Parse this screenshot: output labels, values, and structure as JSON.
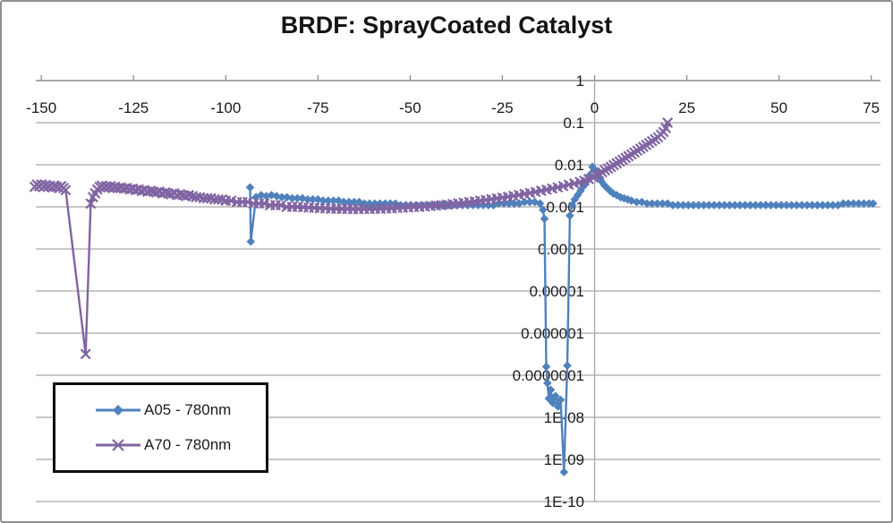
{
  "chart_data": {
    "type": "line",
    "title": "BRDF: SprayCoated Catalyst",
    "xlabel": "",
    "ylabel": "",
    "grid": "horizontal-log-decades-plus-zero-vertical",
    "legend_position": "inside-bottom-left",
    "x_axis": {
      "position": "top",
      "lim": [
        -151.5,
        77.5
      ],
      "ticks": [
        -150,
        -125,
        -100,
        -75,
        -50,
        -25,
        0,
        25,
        50,
        75
      ],
      "tick_labels": [
        "-150",
        "-125",
        "-100",
        "-75",
        "-50",
        "-25",
        "0",
        "25",
        "50",
        "75"
      ]
    },
    "y_axis": {
      "scale": "log",
      "lim": [
        1e-10,
        1
      ],
      "tick_labels": [
        "1",
        "0.1",
        "0.01",
        "0.001",
        "0.0001",
        "0.00001",
        "0.000001",
        "0.0000001",
        "1E-08",
        "1E-09",
        "1E-10"
      ]
    },
    "series": [
      {
        "name": "A05 - 780nm",
        "color": "#4f81bd",
        "marker": "diamond",
        "points": [
          [
            -93.4,
            0.0029
          ],
          [
            -93.2,
            0.00015
          ],
          [
            -91.8,
            0.0017
          ],
          [
            -90.4,
            0.0019
          ],
          [
            -89,
            0.0018
          ],
          [
            -87.6,
            0.0019
          ],
          [
            -86.2,
            0.0018
          ],
          [
            -84.8,
            0.0017
          ],
          [
            -83.4,
            0.0017
          ],
          [
            -82,
            0.0016
          ],
          [
            -80.6,
            0.0016
          ],
          [
            -79.2,
            0.0016
          ],
          [
            -77.8,
            0.0015
          ],
          [
            -76.4,
            0.0015
          ],
          [
            -75,
            0.0015
          ],
          [
            -73.6,
            0.0014
          ],
          [
            -72.2,
            0.0014
          ],
          [
            -70.8,
            0.0014
          ],
          [
            -69.4,
            0.0014
          ],
          [
            -68,
            0.0013
          ],
          [
            -66.6,
            0.0013
          ],
          [
            -65.2,
            0.0013
          ],
          [
            -63.8,
            0.0013
          ],
          [
            -62.4,
            0.0012
          ],
          [
            -61,
            0.0012
          ],
          [
            -59.6,
            0.0012
          ],
          [
            -58.2,
            0.0012
          ],
          [
            -56.8,
            0.0012
          ],
          [
            -55.4,
            0.0012
          ],
          [
            -54,
            0.0012
          ],
          [
            -52.6,
            0.0011
          ],
          [
            -51.2,
            0.0011
          ],
          [
            -49.8,
            0.0011
          ],
          [
            -48.4,
            0.0011
          ],
          [
            -47,
            0.0011
          ],
          [
            -45.6,
            0.0011
          ],
          [
            -44.2,
            0.0011
          ],
          [
            -42.8,
            0.0011
          ],
          [
            -41.4,
            0.0011
          ],
          [
            -40,
            0.0011
          ],
          [
            -38.6,
            0.0011
          ],
          [
            -37.2,
            0.0011
          ],
          [
            -35.8,
            0.0011
          ],
          [
            -34.4,
            0.0011
          ],
          [
            -33,
            0.0011
          ],
          [
            -31.6,
            0.0011
          ],
          [
            -30.2,
            0.0011
          ],
          [
            -28.8,
            0.0011
          ],
          [
            -27.4,
            0.0011
          ],
          [
            -26,
            0.0012
          ],
          [
            -24.6,
            0.0012
          ],
          [
            -23.2,
            0.0012
          ],
          [
            -21.8,
            0.0012
          ],
          [
            -20.4,
            0.0012
          ],
          [
            -19,
            0.0013
          ],
          [
            -17.6,
            0.0013
          ],
          [
            -16.2,
            0.0013
          ],
          [
            -14.8,
            0.0012
          ],
          [
            -14,
            0.00085
          ],
          [
            -13.6,
            0.00052
          ],
          [
            -13.1,
            1.6e-07
          ],
          [
            -12.8,
            6.5e-08
          ],
          [
            -12.4,
            2.8e-08
          ],
          [
            -11.9,
            4.5e-08
          ],
          [
            -11.3,
            2.2e-08
          ],
          [
            -10.6,
            3.2e-08
          ],
          [
            -9.9,
            1.8e-08
          ],
          [
            -9.2,
            2.6e-08
          ],
          [
            -8.3,
            5e-10
          ],
          [
            -7.4,
            1.7e-07
          ],
          [
            -6.7,
            0.00062
          ],
          [
            -6.1,
            0.0011
          ],
          [
            -5.4,
            0.0015
          ],
          [
            -4.6,
            0.0019
          ],
          [
            -3.8,
            0.0024
          ],
          [
            -3,
            0.0031
          ],
          [
            -2.2,
            0.004
          ],
          [
            -1.4,
            0.0056
          ],
          [
            -0.6,
            0.009
          ],
          [
            0.2,
            0.0072
          ],
          [
            1,
            0.0052
          ],
          [
            1.8,
            0.0041
          ],
          [
            2.6,
            0.0033
          ],
          [
            3.4,
            0.0028
          ],
          [
            4.2,
            0.0024
          ],
          [
            5,
            0.0021
          ],
          [
            6,
            0.0019
          ],
          [
            7,
            0.0017
          ],
          [
            8,
            0.0016
          ],
          [
            9,
            0.0015
          ],
          [
            10,
            0.0014
          ],
          [
            11.4,
            0.0013
          ],
          [
            12.8,
            0.0013
          ],
          [
            14.2,
            0.0012
          ],
          [
            15.6,
            0.0012
          ],
          [
            17,
            0.0012
          ],
          [
            18.4,
            0.0012
          ],
          [
            19.8,
            0.0012
          ],
          [
            21.2,
            0.0011
          ],
          [
            22.6,
            0.0011
          ],
          [
            24,
            0.0011
          ],
          [
            25.4,
            0.0011
          ],
          [
            26.8,
            0.0011
          ],
          [
            28.2,
            0.0011
          ],
          [
            29.6,
            0.0011
          ],
          [
            31,
            0.0011
          ],
          [
            32.4,
            0.0011
          ],
          [
            33.8,
            0.0011
          ],
          [
            35.2,
            0.0011
          ],
          [
            36.6,
            0.0011
          ],
          [
            38,
            0.0011
          ],
          [
            39.4,
            0.0011
          ],
          [
            40.8,
            0.0011
          ],
          [
            42.2,
            0.0011
          ],
          [
            43.6,
            0.0011
          ],
          [
            45,
            0.0011
          ],
          [
            46.4,
            0.0011
          ],
          [
            47.8,
            0.0011
          ],
          [
            49.2,
            0.0011
          ],
          [
            50.6,
            0.0011
          ],
          [
            52,
            0.0011
          ],
          [
            53.4,
            0.0011
          ],
          [
            54.8,
            0.0011
          ],
          [
            56.2,
            0.0011
          ],
          [
            57.6,
            0.0011
          ],
          [
            59,
            0.0011
          ],
          [
            60.4,
            0.0011
          ],
          [
            61.8,
            0.0011
          ],
          [
            63.2,
            0.0011
          ],
          [
            64.6,
            0.0011
          ],
          [
            66,
            0.0011
          ],
          [
            67.4,
            0.0012
          ],
          [
            68.8,
            0.0012
          ],
          [
            70.2,
            0.0012
          ],
          [
            71.6,
            0.0012
          ],
          [
            73,
            0.0012
          ],
          [
            74.4,
            0.0012
          ],
          [
            75.5,
            0.0012
          ]
        ]
      },
      {
        "name": "A70 - 780nm",
        "color": "#8064a2",
        "marker": "x",
        "points": [
          [
            -151.8,
            0.003
          ],
          [
            -151.2,
            0.0034
          ],
          [
            -150.6,
            0.0031
          ],
          [
            -150,
            0.0034
          ],
          [
            -149.4,
            0.003
          ],
          [
            -148.8,
            0.0033
          ],
          [
            -148.2,
            0.003
          ],
          [
            -147.6,
            0.0032
          ],
          [
            -147,
            0.0029
          ],
          [
            -146.4,
            0.0032
          ],
          [
            -145.8,
            0.003
          ],
          [
            -145.2,
            0.0028
          ],
          [
            -144.6,
            0.0031
          ],
          [
            -144,
            0.0028
          ],
          [
            -143.4,
            0.0025
          ],
          [
            -138,
            3.2e-07
          ],
          [
            -136.6,
            0.0012
          ],
          [
            -136,
            0.0017
          ],
          [
            -135.4,
            0.0021
          ],
          [
            -134.8,
            0.0026
          ],
          [
            -134.2,
            0.003
          ],
          [
            -133.6,
            0.0032
          ],
          [
            -133,
            0.0029
          ],
          [
            -132.4,
            0.0031
          ],
          [
            -131.8,
            0.0029
          ],
          [
            -131.2,
            0.0031
          ],
          [
            -130.6,
            0.0028
          ],
          [
            -130,
            0.003
          ],
          [
            -129.2,
            0.0028
          ],
          [
            -128.4,
            0.0029
          ],
          [
            -127.6,
            0.0027
          ],
          [
            -126.8,
            0.0028
          ],
          [
            -126,
            0.0026
          ],
          [
            -125.2,
            0.0027
          ],
          [
            -124.4,
            0.0025
          ],
          [
            -123.6,
            0.0026
          ],
          [
            -122.8,
            0.0024
          ],
          [
            -122,
            0.0025
          ],
          [
            -121.2,
            0.0023
          ],
          [
            -120.4,
            0.0024
          ],
          [
            -119.6,
            0.0023
          ],
          [
            -118.8,
            0.0022
          ],
          [
            -118,
            0.0023
          ],
          [
            -117.2,
            0.0021
          ],
          [
            -116.4,
            0.0022
          ],
          [
            -115.6,
            0.0021
          ],
          [
            -114.8,
            0.002
          ],
          [
            -114,
            0.0021
          ],
          [
            -113.2,
            0.0019
          ],
          [
            -112.4,
            0.002
          ],
          [
            -111.6,
            0.0019
          ],
          [
            -110.8,
            0.0018
          ],
          [
            -110,
            0.0019
          ],
          [
            -109,
            0.0018
          ],
          [
            -108,
            0.0017
          ],
          [
            -107,
            0.0017
          ],
          [
            -106,
            0.0016
          ],
          [
            -105,
            0.0016
          ],
          [
            -104,
            0.0016
          ],
          [
            -103,
            0.0015
          ],
          [
            -102,
            0.0015
          ],
          [
            -101,
            0.0015
          ],
          [
            -100,
            0.0014
          ],
          [
            -98.5,
            0.0014
          ],
          [
            -97,
            0.0013
          ],
          [
            -95.5,
            0.0013
          ],
          [
            -94,
            0.0013
          ],
          [
            -92.5,
            0.0012
          ],
          [
            -91,
            0.0012
          ],
          [
            -89.5,
            0.0012
          ],
          [
            -88,
            0.0011
          ],
          [
            -86.5,
            0.0011
          ],
          [
            -85,
            0.0011
          ],
          [
            -83.5,
            0.001
          ],
          [
            -82,
            0.001
          ],
          [
            -80.5,
            0.001
          ],
          [
            -79,
            0.00098
          ],
          [
            -77.5,
            0.00096
          ],
          [
            -76,
            0.00095
          ],
          [
            -74.5,
            0.00093
          ],
          [
            -73,
            0.00092
          ],
          [
            -71.5,
            0.0009
          ],
          [
            -70,
            0.0009
          ],
          [
            -68.5,
            0.00089
          ],
          [
            -67,
            0.00089
          ],
          [
            -65.5,
            0.00088
          ],
          [
            -64,
            0.00088
          ],
          [
            -62.5,
            0.00089
          ],
          [
            -61,
            0.00089
          ],
          [
            -59.5,
            0.0009
          ],
          [
            -58,
            0.0009
          ],
          [
            -56.5,
            0.00091
          ],
          [
            -55,
            0.00092
          ],
          [
            -53.5,
            0.00094
          ],
          [
            -52,
            0.00096
          ],
          [
            -50.5,
            0.00097
          ],
          [
            -49,
            0.00099
          ],
          [
            -47.5,
            0.001
          ],
          [
            -46,
            0.00102
          ],
          [
            -44.5,
            0.00105
          ],
          [
            -43,
            0.00107
          ],
          [
            -41.5,
            0.0011
          ],
          [
            -40,
            0.00113
          ],
          [
            -38.5,
            0.00117
          ],
          [
            -37,
            0.00121
          ],
          [
            -35.5,
            0.00125
          ],
          [
            -34,
            0.0013
          ],
          [
            -32.5,
            0.00135
          ],
          [
            -31,
            0.0014
          ],
          [
            -29.5,
            0.00146
          ],
          [
            -28,
            0.00152
          ],
          [
            -26.5,
            0.00159
          ],
          [
            -25,
            0.00166
          ],
          [
            -23.5,
            0.00174
          ],
          [
            -22,
            0.00183
          ],
          [
            -20.5,
            0.00192
          ],
          [
            -19,
            0.00203
          ],
          [
            -17.5,
            0.00214
          ],
          [
            -16,
            0.00227
          ],
          [
            -14.5,
            0.00241
          ],
          [
            -13,
            0.00256
          ],
          [
            -11.5,
            0.00273
          ],
          [
            -10,
            0.00291
          ],
          [
            -8.5,
            0.00312
          ],
          [
            -7,
            0.00335
          ],
          [
            -5.5,
            0.0036
          ],
          [
            -4,
            0.0039
          ],
          [
            -2.8,
            0.0042
          ],
          [
            -1.6,
            0.0046
          ],
          [
            -0.4,
            0.005
          ],
          [
            0.4,
            0.0056
          ],
          [
            1.2,
            0.0061
          ],
          [
            2,
            0.0067
          ],
          [
            2.8,
            0.0074
          ],
          [
            3.6,
            0.0081
          ],
          [
            4.4,
            0.0089
          ],
          [
            5.2,
            0.0098
          ],
          [
            6,
            0.0108
          ],
          [
            6.8,
            0.0119
          ],
          [
            7.6,
            0.0131
          ],
          [
            8.4,
            0.0145
          ],
          [
            9.2,
            0.016
          ],
          [
            10,
            0.0177
          ],
          [
            10.8,
            0.0196
          ],
          [
            11.6,
            0.0217
          ],
          [
            12.4,
            0.024
          ],
          [
            13.2,
            0.0266
          ],
          [
            14,
            0.0295
          ],
          [
            14.8,
            0.0327
          ],
          [
            15.6,
            0.0363
          ],
          [
            16.4,
            0.0404
          ],
          [
            17.2,
            0.0449
          ],
          [
            18,
            0.052
          ],
          [
            18.7,
            0.06
          ],
          [
            19.3,
            0.075
          ],
          [
            19.8,
            0.1
          ]
        ]
      }
    ],
    "colors": {
      "gridline": "#a6a6a6",
      "axis": "#8e8e8e",
      "text": "#1a1a1a",
      "legend_border": "#0d0d0d"
    }
  }
}
